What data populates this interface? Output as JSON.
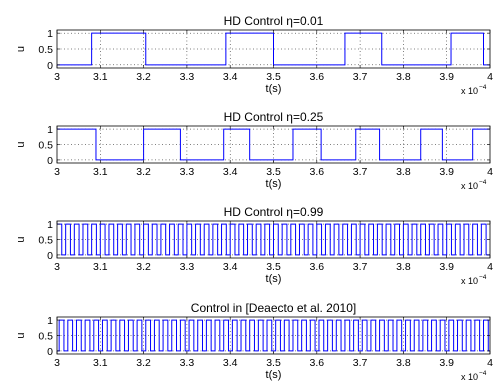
{
  "chart_data": [
    {
      "type": "line",
      "title": "HD Control η=0.01",
      "xlabel": "t(s)",
      "ylabel": "u",
      "x_exponent": "x 10",
      "x_exponent_power": "−4",
      "xlim": [
        3,
        4
      ],
      "ylim": [
        -0.1,
        1.1
      ],
      "xticks": [
        "3",
        "3.1",
        "3.2",
        "3.3",
        "3.4",
        "3.5",
        "3.6",
        "3.7",
        "3.8",
        "3.9",
        "4"
      ],
      "yticks": [
        "0",
        "0.5",
        "1"
      ],
      "grid": true,
      "series": [
        {
          "color": "#0000ff",
          "high_intervals": [
            [
              3.08,
              3.205
            ],
            [
              3.39,
              3.5
            ],
            [
              3.665,
              3.75
            ],
            [
              3.91,
              3.985
            ]
          ]
        }
      ]
    },
    {
      "type": "line",
      "title": "HD Control η=0.25",
      "xlabel": "t(s)",
      "ylabel": "u",
      "x_exponent": "x 10",
      "x_exponent_power": "−4",
      "xlim": [
        3,
        4
      ],
      "ylim": [
        -0.1,
        1.1
      ],
      "xticks": [
        "3",
        "3.1",
        "3.2",
        "3.3",
        "3.4",
        "3.5",
        "3.6",
        "3.7",
        "3.8",
        "3.9",
        "4"
      ],
      "yticks": [
        "0",
        "0.5",
        "1"
      ],
      "grid": true,
      "series": [
        {
          "color": "#0000ff",
          "high_intervals": [
            [
              3.0,
              3.09
            ],
            [
              3.2,
              3.285
            ],
            [
              3.385,
              3.445
            ],
            [
              3.545,
              3.61
            ],
            [
              3.69,
              3.745
            ],
            [
              3.84,
              3.89
            ],
            [
              3.96,
              4.0
            ]
          ]
        }
      ]
    },
    {
      "type": "line",
      "title": "HD Control η=0.99",
      "xlabel": "t(s)",
      "ylabel": "u",
      "x_exponent": "x 10",
      "x_exponent_power": "−4",
      "xlim": [
        3,
        4
      ],
      "ylim": [
        -0.1,
        1.1
      ],
      "xticks": [
        "3",
        "3.1",
        "3.2",
        "3.3",
        "3.4",
        "3.5",
        "3.6",
        "3.7",
        "3.8",
        "3.9",
        "4"
      ],
      "yticks": [
        "0",
        "0.5",
        "1"
      ],
      "grid": true,
      "series": [
        {
          "color": "#0000ff",
          "pulse_period": 0.02,
          "duty": 0.55,
          "start": 3.0
        }
      ]
    },
    {
      "type": "line",
      "title": "Control in [Deaecto et al. 2010]",
      "xlabel": "t(s)",
      "ylabel": "u",
      "x_exponent": "x 10",
      "x_exponent_power": "−4",
      "xlim": [
        3,
        4
      ],
      "ylim": [
        -0.1,
        1.1
      ],
      "xticks": [
        "3",
        "3.1",
        "3.2",
        "3.3",
        "3.4",
        "3.5",
        "3.6",
        "3.7",
        "3.8",
        "3.9",
        "4"
      ],
      "yticks": [
        "0",
        "0.5",
        "1"
      ],
      "grid": true,
      "series": [
        {
          "color": "#0000ff",
          "pulse_period": 0.02,
          "duty": 0.55,
          "start": 3.005
        }
      ]
    }
  ]
}
